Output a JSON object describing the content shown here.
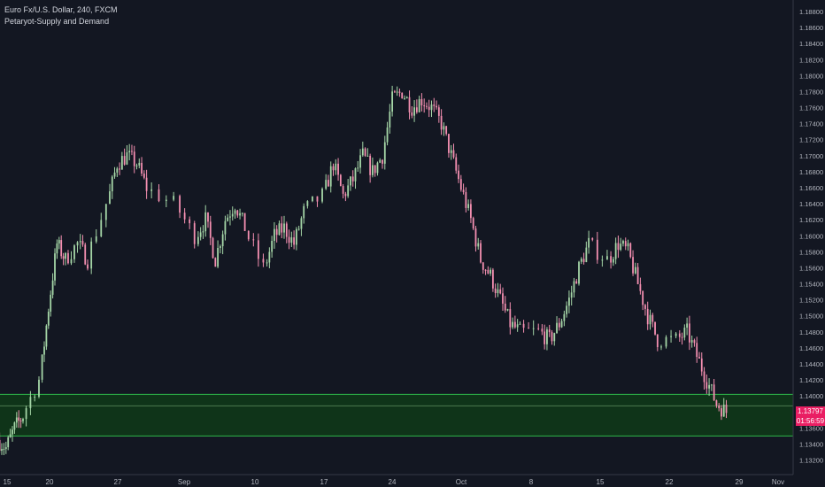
{
  "header": {
    "symbol_line": "Euro Fx/U.S. Dollar, 240, FXCM",
    "indicator_line": "Petaryot-Supply and Demand"
  },
  "price_axis": {
    "last_price": "1.13797",
    "countdown": "01:56:59",
    "last_price_color": "#e91e63",
    "countdown_color": "#e91e63"
  },
  "colors": {
    "background": "#131722",
    "up": "#a5d6a7",
    "down": "#f48fb1",
    "zone_fill": "#0f3a17",
    "zone_line": "#2fb94a",
    "axis_text": "#b2b5be"
  },
  "chart_data": {
    "type": "candlestick",
    "title": "Euro Fx/U.S. Dollar, 240, FXCM",
    "y_ticks": [
      "1.18800",
      "1.18600",
      "1.18400",
      "1.18200",
      "1.18000",
      "1.17800",
      "1.17600",
      "1.17400",
      "1.17200",
      "1.17000",
      "1.16800",
      "1.16600",
      "1.16400",
      "1.16200",
      "1.16000",
      "1.15800",
      "1.15600",
      "1.15400",
      "1.15200",
      "1.15000",
      "1.14800",
      "1.14600",
      "1.14400",
      "1.14200",
      "1.14000",
      "1.13800",
      "1.13600",
      "1.13400",
      "1.13200"
    ],
    "ylim": [
      1.1315,
      1.189
    ],
    "x_ticks": [
      "15",
      "20",
      "27",
      "Sep",
      "10",
      "17",
      "24",
      "Oct",
      "8",
      "15",
      "22",
      "29",
      "Nov"
    ],
    "demand_zone": {
      "upper": 1.1402,
      "middle": 1.13875,
      "lower": 1.135
    },
    "path_anchors": [
      {
        "x": "Aug 15",
        "y": 1.1345
      },
      {
        "x": "Aug 16",
        "y": 1.1335
      },
      {
        "x": "Aug 17",
        "y": 1.136
      },
      {
        "x": "Aug 18",
        "y": 1.1375
      },
      {
        "x": "Aug 20",
        "y": 1.142
      },
      {
        "x": "Aug 21",
        "y": 1.151
      },
      {
        "x": "Aug 22",
        "y": 1.159
      },
      {
        "x": "Aug 23",
        "y": 1.157
      },
      {
        "x": "Aug 24",
        "y": 1.159
      },
      {
        "x": "Aug 25",
        "y": 1.157
      },
      {
        "x": "Aug 27",
        "y": 1.164
      },
      {
        "x": "Aug 28",
        "y": 1.169
      },
      {
        "x": "Aug 29",
        "y": 1.17
      },
      {
        "x": "Aug 30",
        "y": 1.169
      },
      {
        "x": "Aug 31",
        "y": 1.166
      },
      {
        "x": "Sep 1",
        "y": 1.164
      },
      {
        "x": "Sep 3",
        "y": 1.16
      },
      {
        "x": "Sep 4",
        "y": 1.162
      },
      {
        "x": "Sep 5",
        "y": 1.157
      },
      {
        "x": "Sep 6",
        "y": 1.162
      },
      {
        "x": "Sep 7",
        "y": 1.164
      },
      {
        "x": "Sep 8",
        "y": 1.161
      },
      {
        "x": "Sep 10",
        "y": 1.156
      },
      {
        "x": "Sep 11",
        "y": 1.16
      },
      {
        "x": "Sep 12",
        "y": 1.161
      },
      {
        "x": "Sep 13",
        "y": 1.159
      },
      {
        "x": "Sep 14",
        "y": 1.163
      },
      {
        "x": "Sep 16",
        "y": 1.165
      },
      {
        "x": "Sep 17",
        "y": 1.169
      },
      {
        "x": "Sep 18",
        "y": 1.165
      },
      {
        "x": "Sep 19",
        "y": 1.167
      },
      {
        "x": "Sep 20",
        "y": 1.17
      },
      {
        "x": "Sep 21",
        "y": 1.168
      },
      {
        "x": "Sep 22",
        "y": 1.17
      },
      {
        "x": "Sep 23",
        "y": 1.177
      },
      {
        "x": "Sep 24",
        "y": 1.178
      },
      {
        "x": "Sep 25",
        "y": 1.176
      },
      {
        "x": "Sep 26",
        "y": 1.177
      },
      {
        "x": "Sep 27",
        "y": 1.176
      },
      {
        "x": "Sep 28",
        "y": 1.174
      },
      {
        "x": "Sep 29",
        "y": 1.17
      },
      {
        "x": "Sep 30",
        "y": 1.166
      },
      {
        "x": "Oct 1",
        "y": 1.162
      },
      {
        "x": "Oct 2",
        "y": 1.157
      },
      {
        "x": "Oct 3",
        "y": 1.155
      },
      {
        "x": "Oct 4",
        "y": 1.152
      },
      {
        "x": "Oct 5",
        "y": 1.149
      },
      {
        "x": "Oct 6",
        "y": 1.148
      },
      {
        "x": "Oct 8",
        "y": 1.148
      },
      {
        "x": "Oct 9",
        "y": 1.147
      },
      {
        "x": "Oct 10",
        "y": 1.149
      },
      {
        "x": "Oct 11",
        "y": 1.152
      },
      {
        "x": "Oct 12",
        "y": 1.156
      },
      {
        "x": "Oct 13",
        "y": 1.159
      },
      {
        "x": "Oct 15",
        "y": 1.157
      },
      {
        "x": "Oct 16",
        "y": 1.159
      },
      {
        "x": "Oct 17",
        "y": 1.158
      },
      {
        "x": "Oct 18",
        "y": 1.154
      },
      {
        "x": "Oct 19",
        "y": 1.15
      },
      {
        "x": "Oct 20",
        "y": 1.147
      },
      {
        "x": "Oct 22",
        "y": 1.147
      },
      {
        "x": "Oct 23",
        "y": 1.148
      },
      {
        "x": "Oct 24",
        "y": 1.145
      },
      {
        "x": "Oct 25",
        "y": 1.142
      },
      {
        "x": "Oct 26",
        "y": 1.139
      },
      {
        "x": "Oct 27",
        "y": 1.138
      }
    ]
  }
}
